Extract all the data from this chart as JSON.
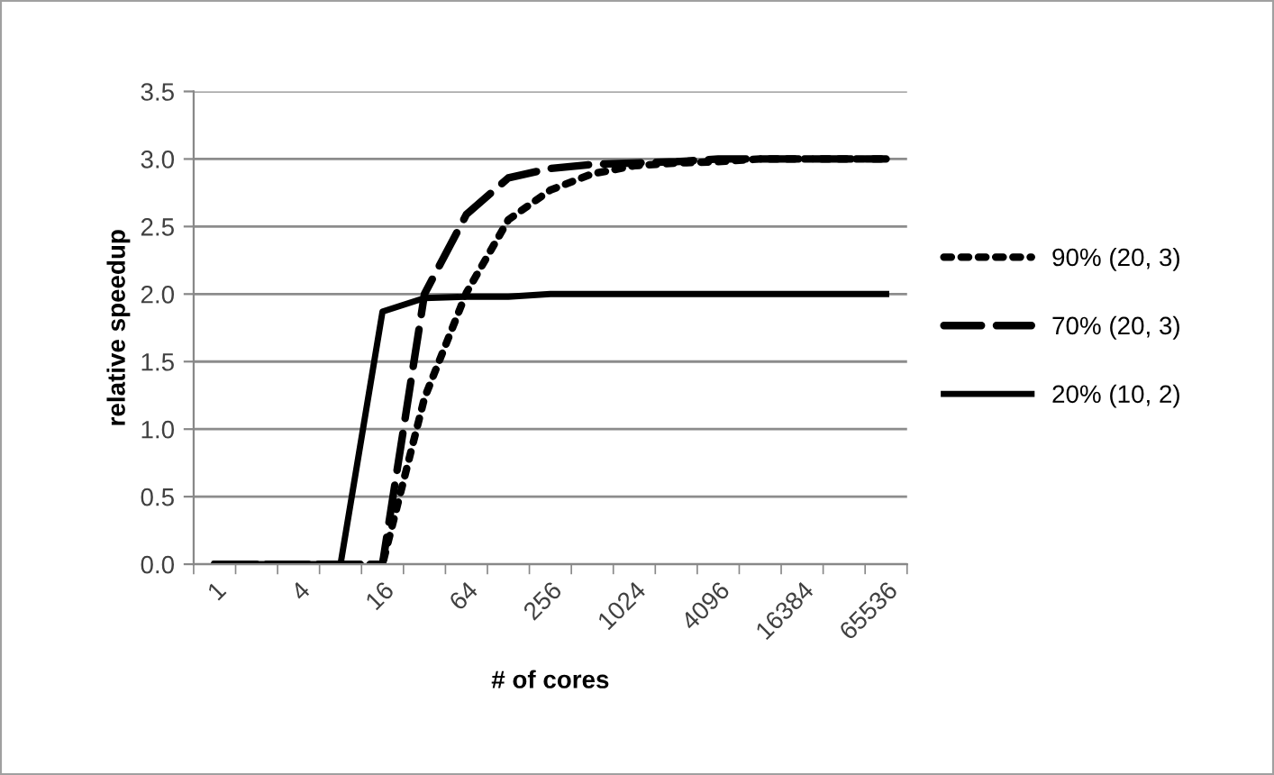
{
  "chart_data": {
    "type": "line",
    "xlabel": "# of cores",
    "ylabel": "relative speedup",
    "categories": [
      "1",
      null,
      "4",
      null,
      "16",
      null,
      "64",
      null,
      "256",
      null,
      "1024",
      null,
      "4096",
      null,
      "16384",
      null,
      "65536"
    ],
    "ylim": [
      0,
      3.5
    ],
    "yticks": [
      {
        "value": 0,
        "label": "0.0"
      },
      0.5,
      {
        "value": 1,
        "label": "1.0"
      },
      1.5,
      {
        "value": 2,
        "label": "2.0"
      },
      2.5,
      {
        "value": 3,
        "label": "3.0"
      },
      3.5
    ],
    "grid": "y",
    "legend": "right",
    "marker": "none",
    "series": [
      {
        "name": "90% (20, 3)",
        "color": "#000000",
        "line_style": "dotted",
        "values": [
          0,
          0,
          0,
          0,
          0,
          1.23,
          2.01,
          2.55,
          2.77,
          2.89,
          2.95,
          2.97,
          2.98,
          3.0,
          3.0,
          3.0,
          3.0
        ]
      },
      {
        "name": "70% (20, 3)",
        "color": "#000000",
        "line_style": "dashed",
        "values": [
          0,
          0,
          0,
          0,
          0,
          2.0,
          2.59,
          2.86,
          2.93,
          2.96,
          2.97,
          2.98,
          3.0,
          3.0,
          3.0,
          3.0,
          3.0
        ]
      },
      {
        "name": "20% (10, 2)",
        "color": "#000000",
        "line_style": "solid",
        "values": [
          0,
          0,
          0,
          0,
          1.87,
          1.97,
          1.98,
          1.98,
          2.0,
          2.0,
          2.0,
          2.0,
          2.0,
          2.0,
          2.0,
          2.0,
          2.0
        ]
      }
    ]
  }
}
